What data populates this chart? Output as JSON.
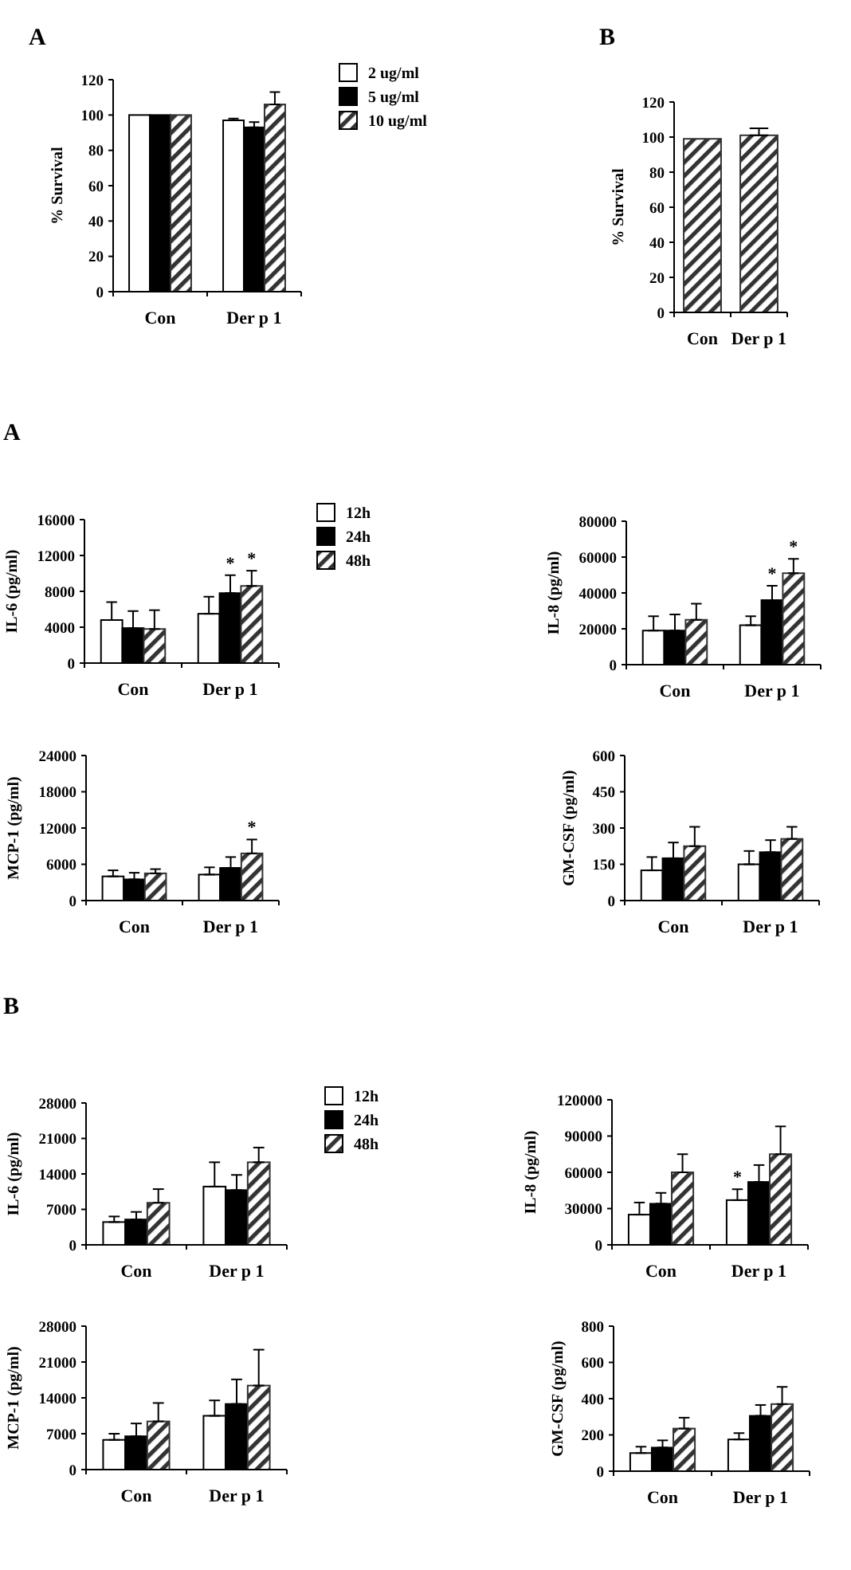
{
  "chart_data": [
    {
      "type": "bar",
      "title": "A",
      "ylabel": "% Survival",
      "categories": [
        "Con",
        "Der p 1"
      ],
      "ylim": [
        0,
        120
      ],
      "yticks": [
        0,
        20,
        40,
        60,
        80,
        100,
        120
      ],
      "legend": "right",
      "series": [
        {
          "name": "2 ug/ml",
          "color": "#ffffff",
          "values": [
            100,
            97
          ],
          "errors": [
            null,
            [
              97,
              98
            ]
          ]
        },
        {
          "name": "5 ug/ml",
          "color": "#000000",
          "values": [
            100,
            93
          ],
          "errors": [
            null,
            [
              93,
              96
            ]
          ]
        },
        {
          "name": "10 ug/ml",
          "color": "#333333",
          "values": [
            100,
            106
          ],
          "errors": [
            null,
            [
              106,
              113
            ]
          ]
        }
      ]
    },
    {
      "type": "bar",
      "title": "B",
      "ylabel": "% Survival",
      "categories": [
        "Con",
        "Der p 1"
      ],
      "ylim": [
        0,
        120
      ],
      "yticks": [
        0,
        20,
        40,
        60,
        80,
        100,
        120
      ],
      "series": [
        {
          "color": "#333333",
          "values": [
            99,
            101
          ],
          "errors": [
            null,
            [
              101,
              105
            ]
          ]
        }
      ]
    },
    {
      "type": "bar",
      "title": "A",
      "ylabel": "IL-6  (pg/ml)",
      "categories": [
        "Con",
        "Der p 1"
      ],
      "ylim": [
        0,
        16000
      ],
      "yticks": [
        0,
        4000,
        8000,
        12000,
        16000
      ],
      "legend": "right",
      "series": [
        {
          "name": "12h",
          "color": "#ffffff",
          "values": [
            4800,
            5500
          ],
          "errors": [
            [
              4800,
              6800
            ],
            [
              5500,
              7400
            ]
          ]
        },
        {
          "name": "24h",
          "color": "#000000",
          "values": [
            3900,
            7800
          ],
          "errors": [
            [
              3900,
              5800
            ],
            [
              7800,
              9800
            ]
          ],
          "value_labels": [
            null,
            "*"
          ]
        },
        {
          "name": "48h",
          "color": "#333333",
          "values": [
            3800,
            8600
          ],
          "errors": [
            [
              3800,
              5900
            ],
            [
              8600,
              10300
            ]
          ],
          "value_labels": [
            null,
            "*"
          ]
        }
      ]
    },
    {
      "type": "bar",
      "ylabel": "IL-8 (pg/ml)",
      "categories": [
        "Con",
        "Der p 1"
      ],
      "ylim": [
        0,
        80000
      ],
      "yticks": [
        0,
        20000,
        40000,
        60000,
        80000
      ],
      "series": [
        {
          "color": "#ffffff",
          "values": [
            19000,
            22000
          ],
          "errors": [
            [
              19000,
              27000
            ],
            [
              22000,
              27000
            ]
          ]
        },
        {
          "color": "#000000",
          "values": [
            19000,
            36000
          ],
          "errors": [
            [
              19000,
              28000
            ],
            [
              36000,
              44000
            ]
          ],
          "value_labels": [
            null,
            "*"
          ]
        },
        {
          "color": "#333333",
          "values": [
            25000,
            51000
          ],
          "errors": [
            [
              25000,
              34000
            ],
            [
              51000,
              59000
            ]
          ],
          "value_labels": [
            null,
            "*"
          ]
        }
      ]
    },
    {
      "type": "bar",
      "ylabel": "MCP-1 (pg/ml)",
      "categories": [
        "Con",
        "Der p 1"
      ],
      "ylim": [
        0,
        24000
      ],
      "yticks": [
        0,
        6000,
        12000,
        18000,
        24000
      ],
      "series": [
        {
          "color": "#ffffff",
          "values": [
            4000,
            4300
          ],
          "errors": [
            [
              4000,
              5000
            ],
            [
              4300,
              5500
            ]
          ]
        },
        {
          "color": "#000000",
          "values": [
            3500,
            5400
          ],
          "errors": [
            [
              3500,
              4600
            ],
            [
              5400,
              7200
            ]
          ]
        },
        {
          "color": "#333333",
          "values": [
            4500,
            7800
          ],
          "errors": [
            [
              4500,
              5200
            ],
            [
              7800,
              10100
            ]
          ],
          "value_labels": [
            null,
            "*"
          ]
        }
      ]
    },
    {
      "type": "bar",
      "ylabel": "GM-CSF  (pg/ml)",
      "categories": [
        "Con",
        "Der p 1"
      ],
      "ylim": [
        0,
        600
      ],
      "yticks": [
        0,
        150,
        300,
        450,
        600
      ],
      "series": [
        {
          "color": "#ffffff",
          "values": [
            125,
            150
          ],
          "errors": [
            [
              125,
              180
            ],
            [
              150,
              205
            ]
          ]
        },
        {
          "color": "#000000",
          "values": [
            175,
            200
          ],
          "errors": [
            [
              175,
              240
            ],
            [
              200,
              250
            ]
          ]
        },
        {
          "color": "#333333",
          "values": [
            225,
            255
          ],
          "errors": [
            [
              225,
              305
            ],
            [
              255,
              305
            ]
          ]
        }
      ]
    },
    {
      "type": "bar",
      "title": "B",
      "ylabel": "IL-6  (pg/ml)",
      "categories": [
        "Con",
        "Der p 1"
      ],
      "ylim": [
        0,
        28000
      ],
      "yticks": [
        0,
        7000,
        14000,
        21000,
        28000
      ],
      "legend": "right",
      "series": [
        {
          "name": "12h",
          "color": "#ffffff",
          "values": [
            4500,
            11500
          ],
          "errors": [
            [
              4500,
              5600
            ],
            [
              11500,
              16300
            ]
          ]
        },
        {
          "name": "24h",
          "color": "#000000",
          "values": [
            5000,
            10800
          ],
          "errors": [
            [
              5000,
              6500
            ],
            [
              10800,
              13800
            ]
          ]
        },
        {
          "name": "48h",
          "color": "#333333",
          "values": [
            8300,
            16300
          ],
          "errors": [
            [
              8300,
              11000
            ],
            [
              16300,
              19200
            ]
          ]
        }
      ]
    },
    {
      "type": "bar",
      "ylabel": "IL-8 (pg/ml)",
      "categories": [
        "Con",
        "Der p 1"
      ],
      "ylim": [
        0,
        120000
      ],
      "yticks": [
        0,
        30000,
        60000,
        90000,
        120000
      ],
      "series": [
        {
          "color": "#ffffff",
          "values": [
            25000,
            37000
          ],
          "errors": [
            [
              25000,
              35000
            ],
            [
              37000,
              46000
            ]
          ],
          "value_labels": [
            null,
            "*"
          ]
        },
        {
          "color": "#000000",
          "values": [
            34000,
            52000
          ],
          "errors": [
            [
              34000,
              43000
            ],
            [
              52000,
              66000
            ]
          ]
        },
        {
          "color": "#333333",
          "values": [
            60000,
            75000
          ],
          "errors": [
            [
              60000,
              75000
            ],
            [
              75000,
              98000
            ]
          ]
        }
      ]
    },
    {
      "type": "bar",
      "ylabel": "MCP-1 (pg/ml)",
      "categories": [
        "Con",
        "Der p 1"
      ],
      "ylim": [
        0,
        28000
      ],
      "yticks": [
        0,
        7000,
        14000,
        21000,
        28000
      ],
      "series": [
        {
          "color": "#ffffff",
          "values": [
            5800,
            10500
          ],
          "errors": [
            [
              5800,
              7000
            ],
            [
              10500,
              13500
            ]
          ]
        },
        {
          "color": "#000000",
          "values": [
            6500,
            12800
          ],
          "errors": [
            [
              6500,
              9000
            ],
            [
              12800,
              17600
            ]
          ]
        },
        {
          "color": "#333333",
          "values": [
            9400,
            16400
          ],
          "errors": [
            [
              9400,
              13000
            ],
            [
              16400,
              23400
            ]
          ]
        }
      ]
    },
    {
      "type": "bar",
      "ylabel": "GM-CSF  (pg/ml)",
      "categories": [
        "Con",
        "Der p 1"
      ],
      "ylim": [
        0,
        800
      ],
      "yticks": [
        0,
        200,
        400,
        600,
        800
      ],
      "series": [
        {
          "color": "#ffffff",
          "values": [
            100,
            175
          ],
          "errors": [
            [
              100,
              135
            ],
            [
              175,
              210
            ]
          ]
        },
        {
          "color": "#000000",
          "values": [
            130,
            305
          ],
          "errors": [
            [
              130,
              170
            ],
            [
              305,
              365
            ]
          ]
        },
        {
          "color": "#333333",
          "values": [
            235,
            370
          ],
          "errors": [
            [
              235,
              295
            ],
            [
              370,
              465
            ]
          ]
        }
      ]
    }
  ]
}
